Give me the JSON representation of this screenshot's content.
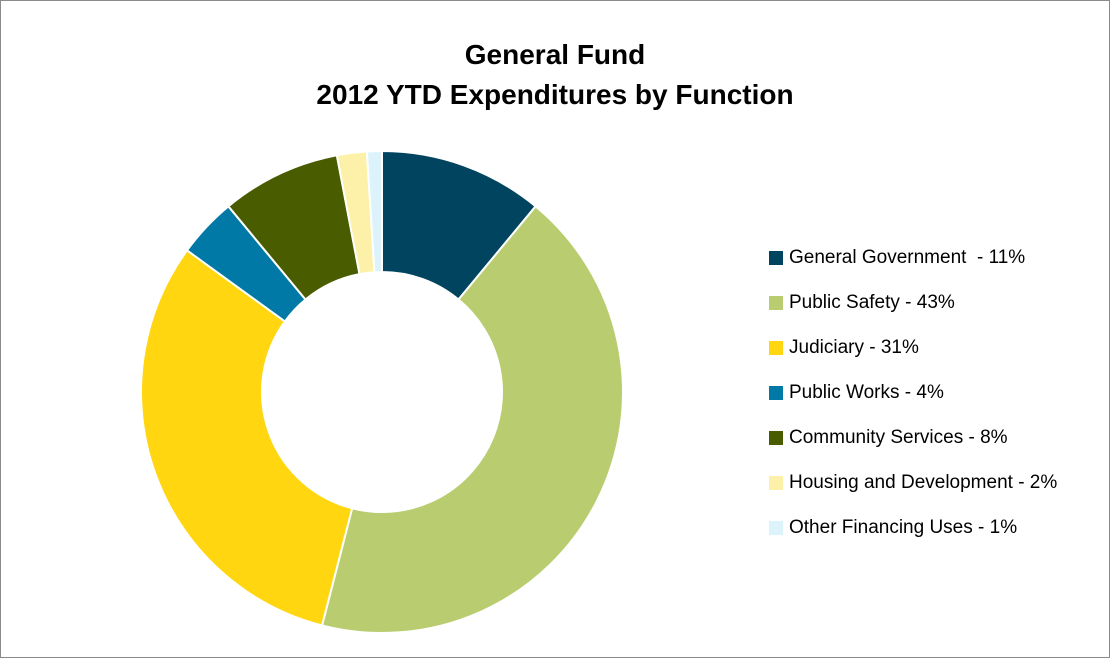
{
  "chart_data": {
    "type": "pie",
    "donut": true,
    "title": [
      "General Fund",
      "2012 YTD Expenditures by Function"
    ],
    "start_angle_deg": 0,
    "direction": "clockwise",
    "legend_position": "right",
    "slices": [
      {
        "label": "General Government  - 11%",
        "value": 11,
        "color": "#00445f"
      },
      {
        "label": "Public Safety - 43%",
        "value": 43,
        "color": "#b9cd70"
      },
      {
        "label": "Judiciary - 31%",
        "value": 31,
        "color": "#ffd60f"
      },
      {
        "label": "Public Works - 4%",
        "value": 4,
        "color": "#0079a6"
      },
      {
        "label": "Community Services - 8%",
        "value": 8,
        "color": "#4a5c00"
      },
      {
        "label": "Housing and Development - 2%",
        "value": 2,
        "color": "#fdf0a8"
      },
      {
        "label": "Other Financing Uses - 1%",
        "value": 1,
        "color": "#dcf3fb"
      }
    ]
  }
}
